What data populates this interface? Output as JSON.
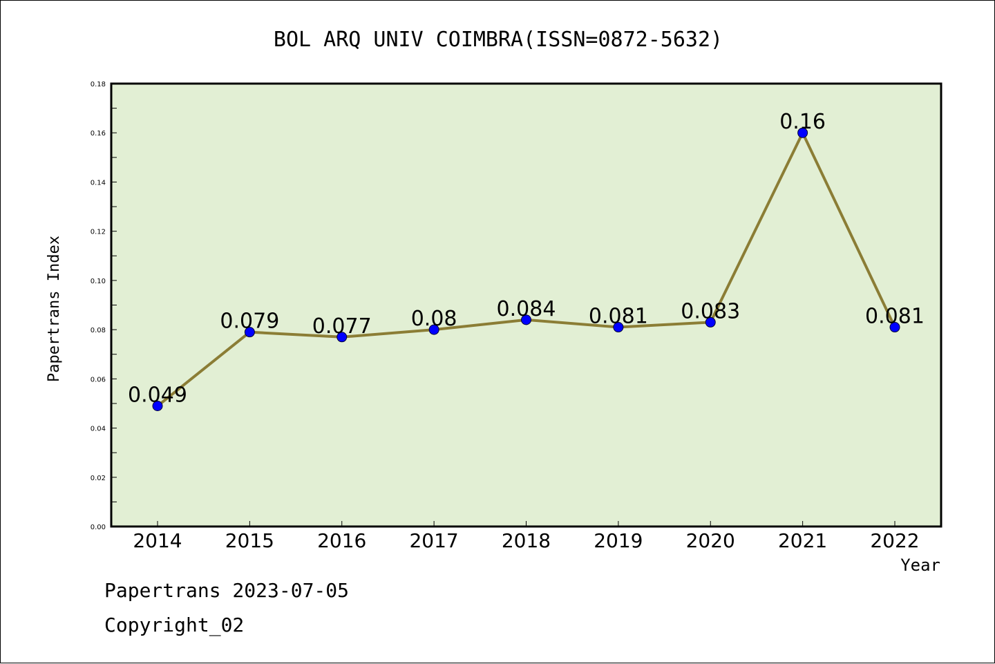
{
  "chart_data": {
    "type": "line",
    "title": "BOL ARQ UNIV COIMBRA(ISSN=0872-5632)",
    "xlabel": "Year",
    "ylabel": "Papertrans Index",
    "categories": [
      "2014",
      "2015",
      "2016",
      "2017",
      "2018",
      "2019",
      "2020",
      "2021",
      "2022"
    ],
    "series": [
      {
        "values": [
          0.049,
          0.079,
          0.077,
          0.08,
          0.084,
          0.081,
          0.083,
          0.16,
          0.081
        ],
        "labels": [
          "0.049",
          "0.079",
          "0.077",
          "0.08",
          "0.084",
          "0.081",
          "0.083",
          "0.16",
          "0.081"
        ],
        "line_color": "#8b7d35",
        "marker_color": "#0000ff"
      }
    ],
    "ylim": [
      0,
      0.18
    ],
    "yticks": [
      "0.00",
      "0.02",
      "0.04",
      "0.06",
      "0.08",
      "0.10",
      "0.12",
      "0.14",
      "0.16",
      "0.18"
    ],
    "plot_background": "#e2efd4",
    "grid": false,
    "legend": "none"
  },
  "footer": {
    "line1": "Papertrans 2023-07-05",
    "line2": "Copyright_02"
  }
}
